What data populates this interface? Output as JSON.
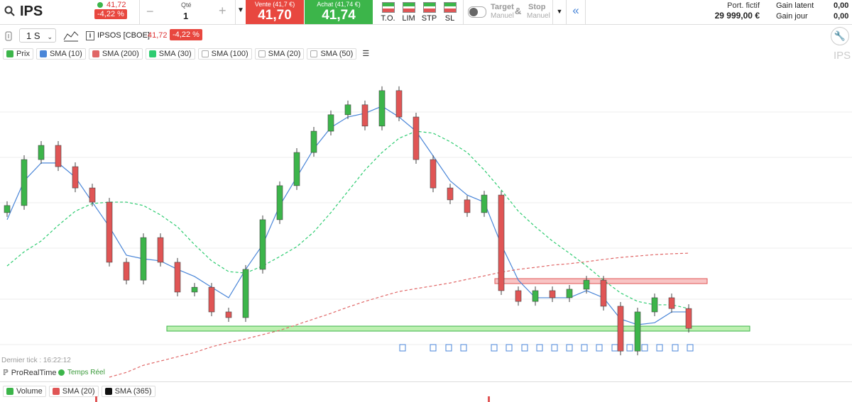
{
  "toolbar": {
    "symbol": "IPS",
    "last": "41,72",
    "change": "-4,22 %",
    "qty_label": "Qté",
    "qty": "1",
    "minus": "−",
    "plus": "+",
    "sell_label": "Vente (41,7 €)",
    "sell": "41,70",
    "buy_label": "Achat (41,74 €)",
    "buy": "41,74",
    "orders": [
      "T.O.",
      "LIM",
      "STP",
      "SL"
    ],
    "target": "Target",
    "target_mode": "Manuel",
    "amp": "&",
    "stop": "Stop",
    "stop_mode": "Manuel",
    "collapse": "«",
    "portfolio_label": "Port. fictif",
    "portfolio": "29 999,00 €",
    "gain_latent_label": "Gain latent",
    "gain_latent": "0,00",
    "gain_day_label": "Gain jour",
    "gain_day": "0,00"
  },
  "chart_header": {
    "period": "1 S",
    "instrument": "IPSOS [CBOE]",
    "last": "41,72",
    "change": "-4,22 %",
    "watermark": "IPS"
  },
  "footer": {
    "last_tick": "Dernier tick : 16:22:12",
    "provider": "ProRealTime",
    "realtime": "Temps Réel",
    "volume_legend": [
      {
        "name": "Volume"
      },
      {
        "name": "SMA (20)"
      },
      {
        "name": "SMA (365)"
      }
    ]
  },
  "chart_data": {
    "type": "candlestick",
    "up_color": "#3cb54a",
    "down_color": "#e05555",
    "ylim": [
      39.8,
      50.92
    ],
    "open": [
      45.8,
      46.05,
      47.67,
      48.17,
      47.42,
      46.67,
      46.17,
      44.05,
      43.42,
      44.92,
      44.05,
      43.0,
      43.17,
      42.3,
      42.1,
      43.8,
      45.55,
      46.75,
      47.92,
      48.67,
      49.25,
      49.6,
      48.85,
      50.1,
      49.17,
      47.67,
      46.67,
      46.25,
      45.8,
      46.42,
      43.05,
      42.67,
      43.05,
      42.8,
      43.1,
      43.42,
      42.5,
      40.92,
      42.3,
      42.8,
      42.42
    ],
    "high": [
      46.2,
      47.82,
      48.32,
      48.32,
      47.57,
      46.82,
      46.32,
      44.2,
      45.07,
      45.07,
      44.2,
      43.32,
      43.32,
      42.45,
      43.95,
      45.7,
      46.9,
      48.07,
      48.82,
      49.4,
      49.75,
      49.75,
      50.25,
      50.25,
      49.32,
      47.82,
      46.82,
      46.4,
      46.57,
      46.57,
      43.2,
      43.2,
      43.2,
      43.25,
      43.57,
      43.57,
      42.65,
      42.45,
      42.95,
      42.95,
      42.57
    ],
    "low": [
      45.65,
      45.9,
      47.52,
      47.27,
      46.52,
      46.02,
      43.9,
      43.27,
      43.27,
      43.9,
      42.85,
      42.85,
      42.15,
      41.95,
      41.95,
      43.65,
      45.4,
      46.6,
      47.77,
      48.52,
      49.1,
      48.7,
      48.7,
      49.02,
      47.52,
      46.52,
      46.1,
      45.65,
      45.65,
      42.9,
      42.52,
      42.52,
      42.65,
      42.65,
      42.95,
      42.35,
      40.77,
      40.77,
      42.15,
      42.27,
      41.57
    ],
    "close": [
      46.05,
      47.67,
      48.17,
      47.42,
      46.67,
      46.17,
      44.05,
      43.42,
      44.92,
      44.05,
      43.0,
      43.17,
      42.3,
      42.1,
      43.8,
      45.55,
      46.75,
      47.92,
      48.67,
      49.25,
      49.6,
      48.85,
      50.1,
      49.17,
      47.67,
      46.67,
      46.25,
      45.8,
      46.42,
      43.05,
      42.67,
      43.05,
      42.8,
      43.1,
      43.42,
      42.5,
      40.92,
      42.3,
      42.8,
      42.42,
      41.72
    ],
    "indicators": [
      {
        "name": "Prix",
        "color": "#3cb54a",
        "shown": true
      },
      {
        "name": "SMA (10)",
        "color": "#4a86d8",
        "shown": true,
        "style": "solid",
        "values": [
          45.55,
          46.92,
          47.55,
          47.55,
          47.05,
          46.17,
          45.3,
          44.3,
          44.17,
          44.1,
          43.8,
          43.55,
          43.17,
          42.8,
          43.8,
          44.67,
          46.05,
          47.05,
          48.05,
          48.8,
          49.17,
          49.3,
          49.55,
          49.17,
          48.67,
          47.8,
          46.92,
          46.42,
          46.17,
          44.67,
          43.42,
          42.8,
          42.8,
          42.8,
          43.05,
          42.8,
          42.05,
          41.85,
          41.92,
          42.3,
          42.3
        ]
      },
      {
        "name": "SMA (200)",
        "color": "#e06666",
        "shown": true,
        "style": "dashed",
        "values": [
          null,
          null,
          null,
          null,
          null,
          null,
          40.0,
          40.17,
          40.42,
          40.57,
          40.72,
          40.87,
          41.07,
          41.22,
          41.35,
          41.5,
          41.65,
          41.85,
          42.05,
          42.25,
          42.47,
          42.67,
          42.85,
          43.02,
          43.12,
          43.22,
          43.32,
          43.45,
          43.57,
          43.7,
          43.8,
          43.87,
          43.95,
          44.0,
          44.07,
          44.15,
          44.22,
          44.27,
          44.32,
          44.35,
          44.37
        ]
      },
      {
        "name": "SMA (30)",
        "color": "#2ecc71",
        "shown": true,
        "style": "dashed",
        "values": [
          43.92,
          44.42,
          44.8,
          45.35,
          45.85,
          46.12,
          46.17,
          46.17,
          46.05,
          45.72,
          45.3,
          44.67,
          44.1,
          43.72,
          43.67,
          43.92,
          44.25,
          44.6,
          45.12,
          45.8,
          46.55,
          47.3,
          47.92,
          48.42,
          48.67,
          48.6,
          48.3,
          47.92,
          47.3,
          46.6,
          45.85,
          45.3,
          44.8,
          44.37,
          43.92,
          43.42,
          42.97,
          42.67,
          42.55,
          42.55,
          42.42
        ]
      },
      {
        "name": "SMA (100)",
        "shown": false
      },
      {
        "name": "SMA (20)",
        "shown": false
      },
      {
        "name": "SMA (50)",
        "shown": false
      }
    ]
  }
}
